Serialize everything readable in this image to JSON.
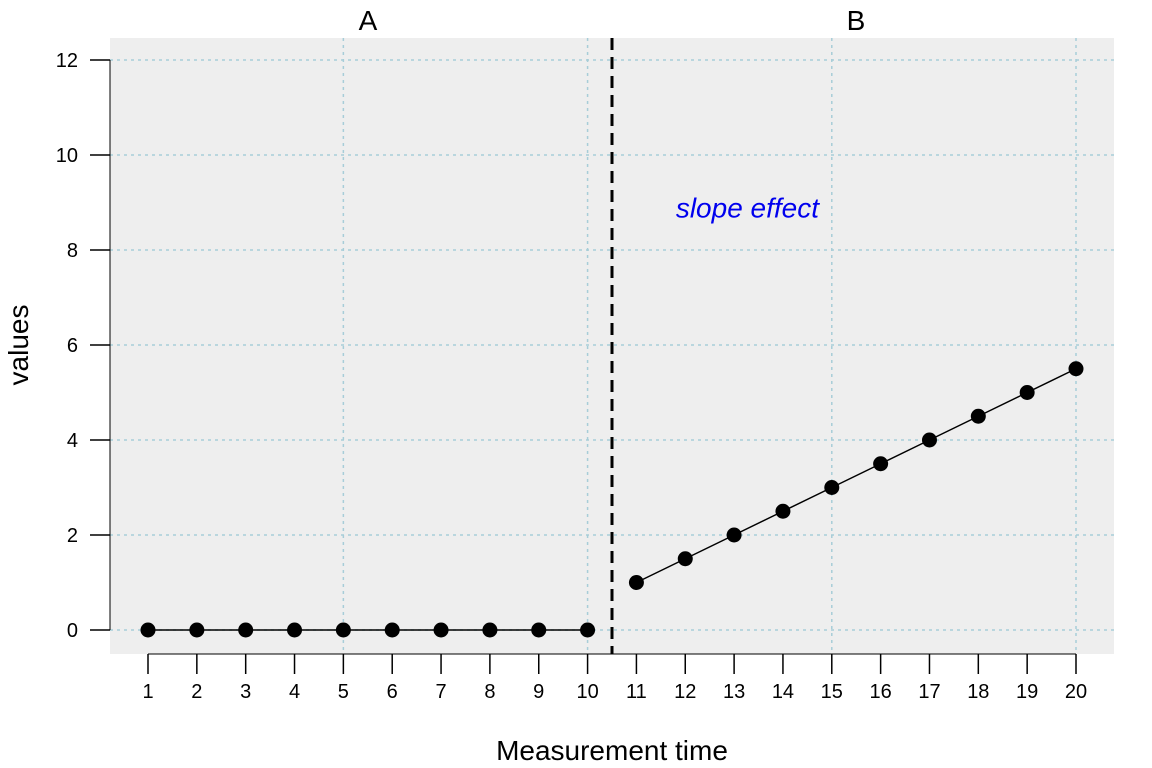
{
  "chart_data": {
    "type": "line",
    "xlabel": "Measurement time",
    "ylabel": "values",
    "x": [
      1,
      2,
      3,
      4,
      5,
      6,
      7,
      8,
      9,
      10,
      11,
      12,
      13,
      14,
      15,
      16,
      17,
      18,
      19,
      20
    ],
    "xlim": [
      1,
      20
    ],
    "ylim": [
      0,
      12
    ],
    "yticks": [
      0,
      2,
      4,
      6,
      8,
      10,
      12
    ],
    "phases": [
      {
        "label": "A",
        "x": [
          1,
          2,
          3,
          4,
          5,
          6,
          7,
          8,
          9,
          10
        ],
        "values": [
          0,
          0,
          0,
          0,
          0,
          0,
          0,
          0,
          0,
          0
        ]
      },
      {
        "label": "B",
        "x": [
          11,
          12,
          13,
          14,
          15,
          16,
          17,
          18,
          19,
          20
        ],
        "values": [
          1,
          1.5,
          2,
          2.5,
          3,
          3.5,
          4,
          4.5,
          5,
          5.5
        ]
      }
    ],
    "phase_change_at": 10.5,
    "annotation": {
      "text": "slope effect",
      "x": 14.1,
      "y": 8.9,
      "color": "#0000ee"
    },
    "grid": true,
    "colors": {
      "panel_bg": "#eeeeee",
      "grid": "#a7cdd8",
      "points": "#000000",
      "phase_line": "#000000"
    }
  }
}
